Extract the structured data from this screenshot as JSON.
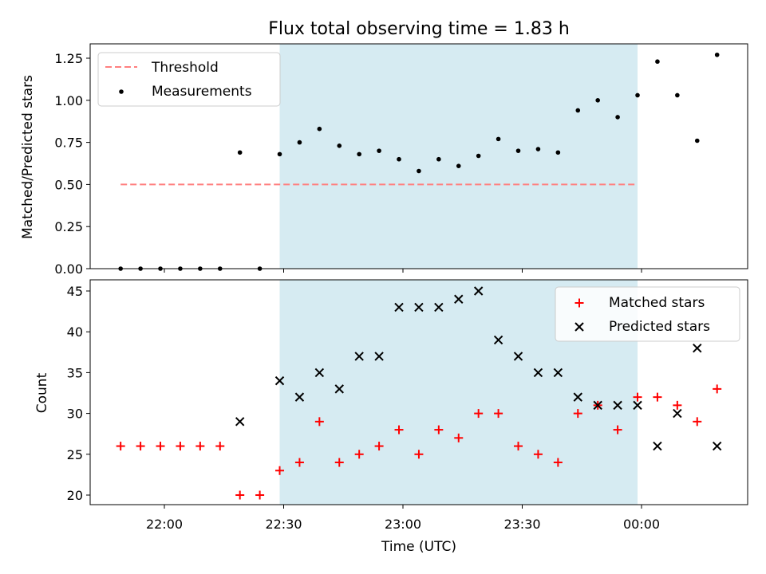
{
  "colors": {
    "threshold": "#ff7f7f",
    "measurement": "#000000",
    "matched": "#ff0000",
    "predicted": "#000000",
    "span": "#add8e6"
  },
  "chart_data": [
    {
      "type": "scatter",
      "title": "Flux total observing time = 1.83 h",
      "xlabel": "",
      "ylabel": "Matched/Predicted stars",
      "ylim": [
        0.0,
        1.3
      ],
      "yticks": [
        "0.00",
        "0.25",
        "0.50",
        "0.75",
        "1.00",
        "1.25"
      ],
      "legend_position": "upper-left",
      "shaded_span": [
        "22:29",
        "23:59"
      ],
      "series": [
        {
          "name": "Threshold",
          "style": "dashed-line",
          "x": [
            "21:49",
            "23:59"
          ],
          "y": [
            0.5,
            0.5
          ]
        },
        {
          "name": "Measurements",
          "style": "dot",
          "x": [
            "21:49",
            "21:54",
            "21:59",
            "22:04",
            "22:09",
            "22:14",
            "22:19",
            "22:24",
            "22:29",
            "22:34",
            "22:39",
            "22:44",
            "22:49",
            "22:54",
            "22:59",
            "23:04",
            "23:09",
            "23:14",
            "23:19",
            "23:24",
            "23:29",
            "23:34",
            "23:39",
            "23:44",
            "23:49",
            "23:54",
            "23:59",
            "00:04",
            "00:09",
            "00:14",
            "00:19"
          ],
          "y": [
            0.0,
            0.0,
            0.0,
            0.0,
            0.0,
            0.0,
            0.69,
            0.0,
            0.68,
            0.75,
            0.83,
            0.73,
            0.68,
            0.7,
            0.65,
            0.58,
            0.65,
            0.61,
            0.67,
            0.77,
            0.7,
            0.71,
            0.69,
            0.94,
            1.0,
            0.9,
            1.03,
            1.23,
            1.03,
            0.76,
            1.27
          ]
        }
      ]
    },
    {
      "type": "scatter",
      "xlabel": "Time (UTC)",
      "ylabel": "Count",
      "ylim": [
        19,
        46
      ],
      "yticks": [
        "20",
        "25",
        "30",
        "35",
        "40",
        "45"
      ],
      "xticks": [
        "22:00",
        "22:30",
        "23:00",
        "23:30",
        "00:00"
      ],
      "legend_position": "upper-right",
      "shaded_span": [
        "22:29",
        "23:59"
      ],
      "series": [
        {
          "name": "Matched stars",
          "marker": "plus",
          "x": [
            "21:49",
            "21:54",
            "21:59",
            "22:04",
            "22:09",
            "22:14",
            "22:19",
            "22:24",
            "22:29",
            "22:34",
            "22:39",
            "22:44",
            "22:49",
            "22:54",
            "22:59",
            "23:04",
            "23:09",
            "23:14",
            "23:19",
            "23:24",
            "23:29",
            "23:34",
            "23:39",
            "23:44",
            "23:49",
            "23:54",
            "23:59",
            "00:04",
            "00:09",
            "00:14",
            "00:19"
          ],
          "y": [
            26,
            26,
            26,
            26,
            26,
            26,
            20,
            20,
            23,
            24,
            29,
            24,
            25,
            26,
            28,
            25,
            28,
            27,
            30,
            30,
            26,
            25,
            24,
            30,
            31,
            28,
            32,
            32,
            31,
            29,
            33
          ]
        },
        {
          "name": "Predicted stars",
          "marker": "x",
          "x": [
            "22:19",
            "22:29",
            "22:34",
            "22:39",
            "22:44",
            "22:49",
            "22:54",
            "22:59",
            "23:04",
            "23:09",
            "23:14",
            "23:19",
            "23:24",
            "23:29",
            "23:34",
            "23:39",
            "23:44",
            "23:49",
            "23:54",
            "23:59",
            "00:04",
            "00:09",
            "00:14",
            "00:19"
          ],
          "y": [
            29,
            34,
            32,
            35,
            33,
            37,
            37,
            43,
            43,
            43,
            44,
            45,
            39,
            37,
            35,
            35,
            32,
            31,
            31,
            31,
            26,
            30,
            38,
            26
          ]
        }
      ]
    }
  ]
}
